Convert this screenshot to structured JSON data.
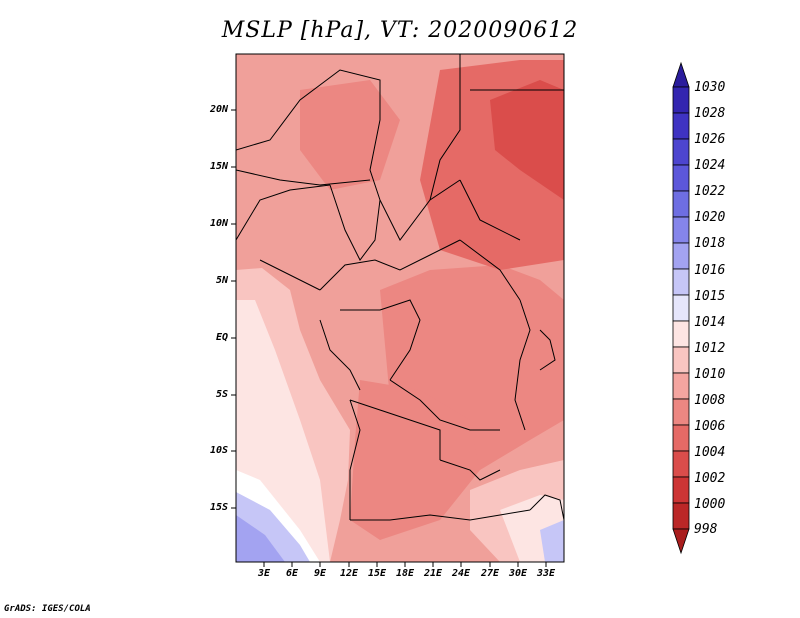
{
  "title": "MSLP [hPa], VT: 2020090612",
  "credit": "GrADS: IGES/COLA",
  "lat_labels": [
    "20N",
    "15N",
    "10N",
    "5N",
    "EQ",
    "5S",
    "10S",
    "15S"
  ],
  "lon_labels": [
    "3E",
    "6E",
    "9E",
    "12E",
    "15E",
    "18E",
    "21E",
    "24E",
    "27E",
    "30E",
    "33E"
  ],
  "colorbar": {
    "levels": [
      "1030",
      "1028",
      "1026",
      "1024",
      "1022",
      "1020",
      "1018",
      "1016",
      "1015",
      "1014",
      "1012",
      "1010",
      "1008",
      "1006",
      "1004",
      "1002",
      "1000",
      "998"
    ],
    "colors": [
      "#2a1c9c",
      "#3325b0",
      "#3f33c2",
      "#4d45cf",
      "#5c57da",
      "#6e6ee2",
      "#8585ea",
      "#a3a3f1",
      "#c6c6f7",
      "#e6e6fb",
      "#fde5e3",
      "#f9c5c1",
      "#f4a5a0",
      "#ec8782",
      "#e56a66",
      "#da4d4b",
      "#cd3535",
      "#bb2727",
      "#a91d1d"
    ]
  }
}
